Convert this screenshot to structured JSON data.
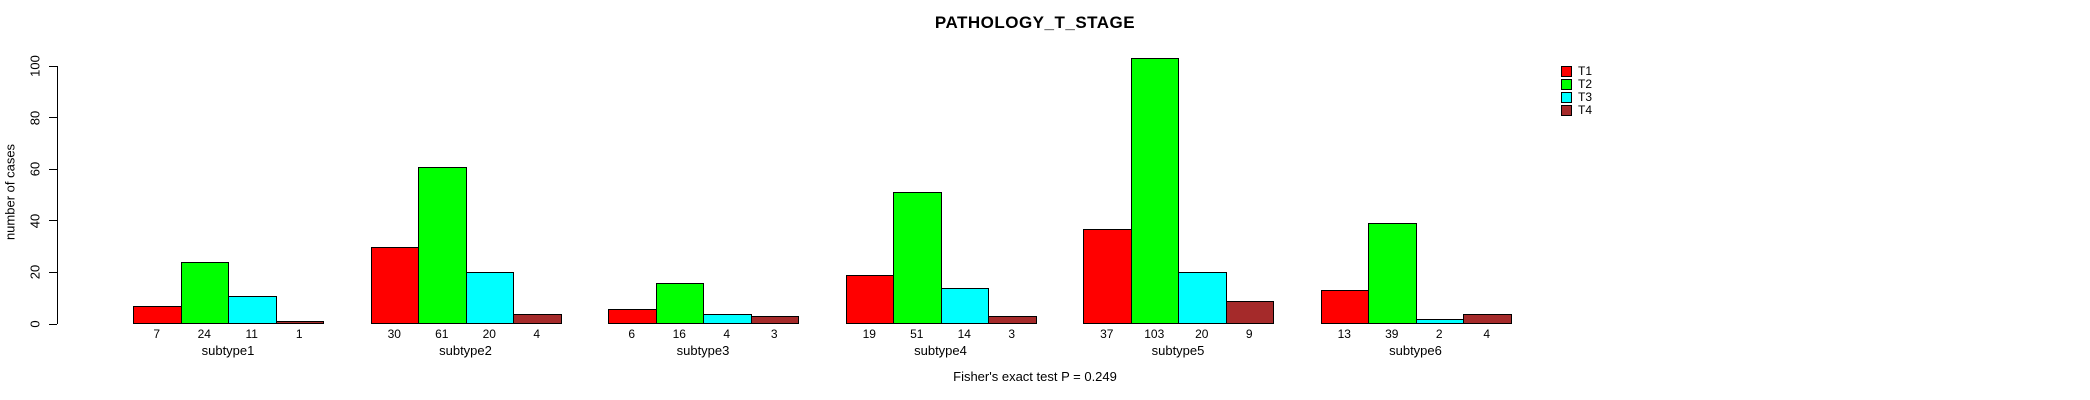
{
  "chart_data": {
    "type": "bar",
    "title": "PATHOLOGY_T_STAGE",
    "xlabel": "",
    "ylabel": "number of cases",
    "annotation": "Fisher's exact test P = 0.249",
    "categories": [
      "subtype1",
      "subtype2",
      "subtype3",
      "subtype4",
      "subtype5",
      "subtype6"
    ],
    "series": [
      {
        "name": "T1",
        "color": "#FF0000",
        "values": [
          7,
          30,
          6,
          19,
          37,
          13
        ]
      },
      {
        "name": "T2",
        "color": "#00FF00",
        "values": [
          24,
          61,
          16,
          51,
          103,
          39
        ]
      },
      {
        "name": "T3",
        "color": "#00FFFF",
        "values": [
          11,
          20,
          4,
          14,
          20,
          2
        ]
      },
      {
        "name": "T4",
        "color": "#A52A2A",
        "values": [
          1,
          4,
          3,
          3,
          9,
          4
        ]
      }
    ],
    "ylim": [
      0,
      100
    ],
    "yticks": [
      0,
      20,
      40,
      60,
      80,
      100
    ],
    "grid": false,
    "legend_position": "right",
    "value_labels": true,
    "bar_border_color": "#000000",
    "background_color": "#FFFFFF"
  }
}
